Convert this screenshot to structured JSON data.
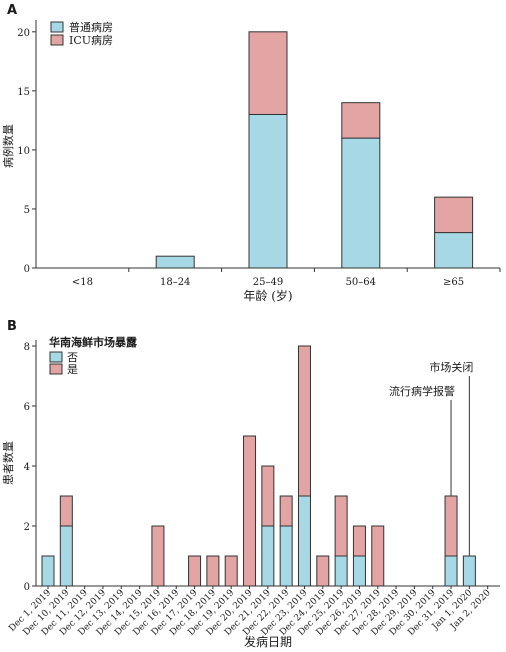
{
  "chart_data": [
    {
      "type": "bar",
      "stacked": true,
      "panel_label": "A",
      "xlabel": "年龄 (岁)",
      "ylabel": "病例数量",
      "categories": [
        "<18",
        "18–24",
        "25–49",
        "50–64",
        "≥65"
      ],
      "series": [
        {
          "name": "普通病房",
          "color": "#a7d8e6",
          "values": [
            0,
            1,
            13,
            11,
            3
          ]
        },
        {
          "name": "ICU病房",
          "color": "#e3a4a4",
          "values": [
            0,
            0,
            7,
            3,
            3
          ]
        }
      ],
      "yticks": [
        0,
        5,
        10,
        15,
        20
      ],
      "ylim": [
        0,
        21
      ],
      "legend": "top-left"
    },
    {
      "type": "bar",
      "stacked": true,
      "panel_label": "B",
      "xlabel": "发病日期",
      "ylabel": "患者数量",
      "legend_title": "华南海鲜市场暴露",
      "categories": [
        "Dec 1, 2019",
        "Dec 10, 2019",
        "Dec 11, 2019",
        "Dec 12, 2019",
        "Dec 13, 2019",
        "Dec 14, 2019",
        "Dec 15, 2019",
        "Dec 16, 2019",
        "Dec 17, 2019",
        "Dec 18, 2019",
        "Dec 19, 2019",
        "Dec 20, 2019",
        "Dec 21, 2019",
        "Dec 22, 2019",
        "Dec 23, 2019",
        "Dec 24, 2019",
        "Dec 25, 2019",
        "Dec 26, 2019",
        "Dec 27, 2019",
        "Dec 28, 2019",
        "Dec 29, 2019",
        "Dec 30, 2019",
        "Dec 31, 2019",
        "Jan 1, 2020",
        "Jan 2, 2020"
      ],
      "series": [
        {
          "name": "否",
          "color": "#a7d8e6",
          "values": [
            1,
            2,
            0,
            0,
            0,
            0,
            0,
            0,
            0,
            0,
            0,
            0,
            2,
            2,
            3,
            0,
            1,
            1,
            0,
            0,
            0,
            0,
            1,
            1,
            0
          ]
        },
        {
          "name": "是",
          "color": "#e3a4a4",
          "values": [
            0,
            1,
            0,
            0,
            0,
            0,
            2,
            0,
            1,
            1,
            1,
            5,
            2,
            1,
            5,
            1,
            2,
            1,
            2,
            0,
            0,
            0,
            2,
            0,
            0
          ]
        }
      ],
      "yticks": [
        0,
        2,
        4,
        6,
        8
      ],
      "ylim": [
        0,
        8.2
      ],
      "legend": "top-left",
      "annotations": [
        {
          "text": "流行病学报警",
          "category": "Dec 31, 2019",
          "value": 6.2
        },
        {
          "text": "市场关闭",
          "category": "Jan 1, 2020",
          "value": 7.0
        }
      ]
    }
  ]
}
